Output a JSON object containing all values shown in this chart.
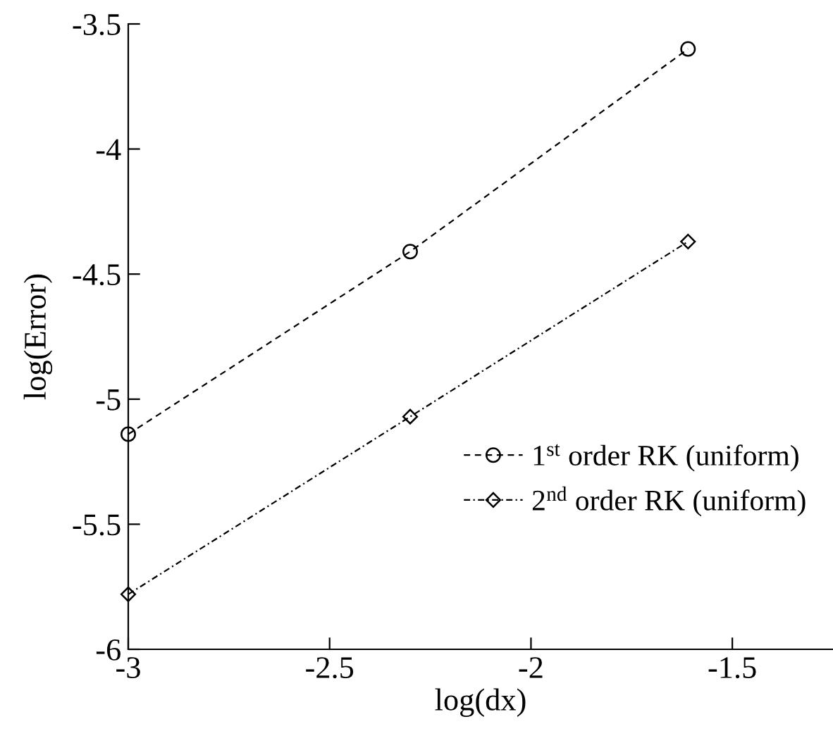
{
  "chart_data": {
    "type": "line",
    "xlabel": "log(dx)",
    "ylabel": "log(Error)",
    "xlim": [
      -3,
      -1.25
    ],
    "xticks": [
      -3,
      -2.5,
      -2,
      -1.5
    ],
    "ylim": [
      -6,
      -3.5
    ],
    "yticks": [
      -6,
      -5.5,
      -5,
      -4.5,
      -4,
      -3.5
    ],
    "grid": false,
    "legend": "right",
    "series": [
      {
        "name": "1$^{st}$ order RK (uniform)",
        "color": "#000000",
        "marker": "circle",
        "line_style": "dashed",
        "x": [
          -3,
          -2.3,
          -1.61
        ],
        "values": [
          -5.14,
          -4.41,
          -3.6
        ]
      },
      {
        "name": "2$^{nd}$ order RK (uniform)",
        "color": "#000000",
        "marker": "diamond",
        "line_style": "dashdot",
        "x": [
          -3,
          -2.3,
          -1.61
        ],
        "values": [
          -5.78,
          -5.07,
          -4.37
        ]
      }
    ]
  }
}
